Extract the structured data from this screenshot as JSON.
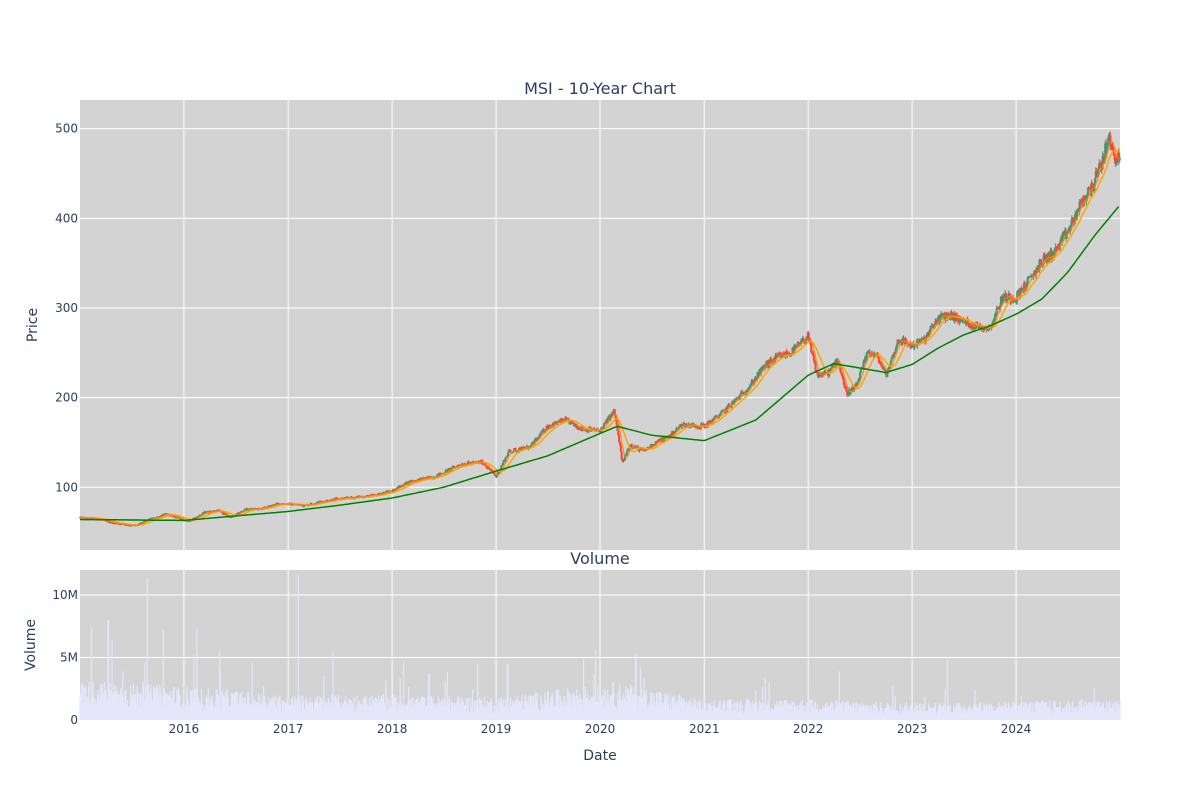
{
  "chart_data": [
    {
      "type": "candlestick",
      "title": "MSI - 10-Year Chart",
      "xlabel": "",
      "ylabel": "Price",
      "ylim": [
        30,
        532
      ],
      "xlim": [
        "2015-01-01",
        "2024-12-31"
      ],
      "yticks": [
        100,
        200,
        300,
        400,
        500
      ],
      "grid": true,
      "legend": "none",
      "colors": {
        "increasing": "#3d9970",
        "decreasing": "#ff4136",
        "ma_short": "#ff7f0e",
        "ma_mid": "#ffa500",
        "ma_long": "#008000",
        "plot_bg": "#d3d3d3",
        "grid": "#ffffff"
      },
      "close_anchors": [
        [
          "2015-01-02",
          66
        ],
        [
          "2015-03-01",
          65
        ],
        [
          "2015-05-01",
          60
        ],
        [
          "2015-07-15",
          57
        ],
        [
          "2015-09-01",
          64
        ],
        [
          "2015-11-01",
          70
        ],
        [
          "2016-01-20",
          62
        ],
        [
          "2016-03-15",
          72
        ],
        [
          "2016-05-01",
          74
        ],
        [
          "2016-06-15",
          66
        ],
        [
          "2016-08-01",
          75
        ],
        [
          "2016-10-01",
          76
        ],
        [
          "2016-12-01",
          82
        ],
        [
          "2017-03-01",
          80
        ],
        [
          "2017-06-01",
          86
        ],
        [
          "2017-09-01",
          89
        ],
        [
          "2017-11-01",
          91
        ],
        [
          "2018-01-01",
          96
        ],
        [
          "2018-03-01",
          106
        ],
        [
          "2018-06-01",
          112
        ],
        [
          "2018-09-01",
          126
        ],
        [
          "2018-11-15",
          128
        ],
        [
          "2019-01-01",
          112
        ],
        [
          "2019-02-15",
          140
        ],
        [
          "2019-05-01",
          145
        ],
        [
          "2019-07-01",
          168
        ],
        [
          "2019-09-01",
          175
        ],
        [
          "2019-11-01",
          165
        ],
        [
          "2020-01-01",
          163
        ],
        [
          "2020-02-20",
          185
        ],
        [
          "2020-03-20",
          127
        ],
        [
          "2020-04-15",
          148
        ],
        [
          "2020-06-01",
          140
        ],
        [
          "2020-07-15",
          150
        ],
        [
          "2020-09-01",
          157
        ],
        [
          "2020-10-15",
          170
        ],
        [
          "2021-01-01",
          168
        ],
        [
          "2021-03-01",
          182
        ],
        [
          "2021-05-01",
          200
        ],
        [
          "2021-06-15",
          215
        ],
        [
          "2021-08-01",
          235
        ],
        [
          "2021-09-15",
          245
        ],
        [
          "2021-11-01",
          250
        ],
        [
          "2021-12-31",
          268
        ],
        [
          "2022-02-01",
          225
        ],
        [
          "2022-03-15",
          228
        ],
        [
          "2022-04-15",
          243
        ],
        [
          "2022-05-15",
          205
        ],
        [
          "2022-06-15",
          210
        ],
        [
          "2022-08-01",
          252
        ],
        [
          "2022-09-01",
          245
        ],
        [
          "2022-10-01",
          225
        ],
        [
          "2022-11-15",
          265
        ],
        [
          "2023-01-01",
          258
        ],
        [
          "2023-02-15",
          265
        ],
        [
          "2023-04-01",
          288
        ],
        [
          "2023-05-15",
          292
        ],
        [
          "2023-07-01",
          285
        ],
        [
          "2023-08-15",
          280
        ],
        [
          "2023-10-01",
          278
        ],
        [
          "2023-11-15",
          312
        ],
        [
          "2024-01-01",
          312
        ],
        [
          "2024-02-15",
          330
        ],
        [
          "2024-04-01",
          352
        ],
        [
          "2024-05-15",
          362
        ],
        [
          "2024-07-01",
          385
        ],
        [
          "2024-08-15",
          415
        ],
        [
          "2024-10-01",
          440
        ],
        [
          "2024-11-01",
          465
        ],
        [
          "2024-11-20",
          490
        ],
        [
          "2024-12-10",
          470
        ],
        [
          "2024-12-31",
          465
        ]
      ],
      "ma_long_anchors": [
        [
          "2015-01-02",
          64
        ],
        [
          "2016-01-01",
          63
        ],
        [
          "2016-07-01",
          68
        ],
        [
          "2017-01-01",
          73
        ],
        [
          "2017-07-01",
          80
        ],
        [
          "2018-01-01",
          88
        ],
        [
          "2018-07-01",
          100
        ],
        [
          "2019-01-01",
          118
        ],
        [
          "2019-07-01",
          135
        ],
        [
          "2020-01-01",
          160
        ],
        [
          "2020-03-01",
          168
        ],
        [
          "2020-07-01",
          158
        ],
        [
          "2021-01-01",
          152
        ],
        [
          "2021-07-01",
          175
        ],
        [
          "2022-01-01",
          225
        ],
        [
          "2022-04-01",
          238
        ],
        [
          "2022-07-01",
          233
        ],
        [
          "2022-10-01",
          228
        ],
        [
          "2023-01-01",
          237
        ],
        [
          "2023-04-01",
          255
        ],
        [
          "2023-07-01",
          270
        ],
        [
          "2023-10-01",
          280
        ],
        [
          "2024-01-01",
          293
        ],
        [
          "2024-04-01",
          310
        ],
        [
          "2024-07-01",
          340
        ],
        [
          "2024-10-01",
          380
        ],
        [
          "2024-12-31",
          415
        ]
      ]
    },
    {
      "type": "bar",
      "title": "Volume",
      "xlabel": "Date",
      "ylabel": "Volume",
      "ylim": [
        0,
        12000000
      ],
      "xlim": [
        "2015-01-01",
        "2024-12-31"
      ],
      "yticks": [
        0,
        5000000,
        10000000
      ],
      "ytick_labels": [
        "0",
        "5M",
        "10M"
      ],
      "xticks": [
        "2016",
        "2017",
        "2018",
        "2019",
        "2020",
        "2021",
        "2022",
        "2023",
        "2024"
      ],
      "grid": true,
      "bar_color": "#e6e6fa",
      "base_volume_anchors": [
        [
          "2015-01-01",
          1900000
        ],
        [
          "2016-01-01",
          1600000
        ],
        [
          "2017-01-01",
          1200000
        ],
        [
          "2018-01-01",
          1200000
        ],
        [
          "2019-01-01",
          1100000
        ],
        [
          "2020-03-01",
          1800000
        ],
        [
          "2021-01-01",
          1000000
        ],
        [
          "2022-01-01",
          1000000
        ],
        [
          "2023-01-01",
          800000
        ],
        [
          "2024-01-01",
          900000
        ],
        [
          "2024-12-31",
          1000000
        ]
      ],
      "volume_spikes": [
        [
          "2015-02-10",
          7400000
        ],
        [
          "2015-04-10",
          8000000
        ],
        [
          "2015-08-25",
          11300000
        ],
        [
          "2015-10-20",
          7200000
        ],
        [
          "2016-02-15",
          7300000
        ],
        [
          "2016-05-05",
          5500000
        ],
        [
          "2017-02-05",
          11600000
        ],
        [
          "2018-02-10",
          4600000
        ],
        [
          "2018-05-10",
          3700000
        ],
        [
          "2019-02-10",
          4500000
        ],
        [
          "2020-05-05",
          5300000
        ],
        [
          "2023-05-05",
          4900000
        ]
      ]
    }
  ]
}
